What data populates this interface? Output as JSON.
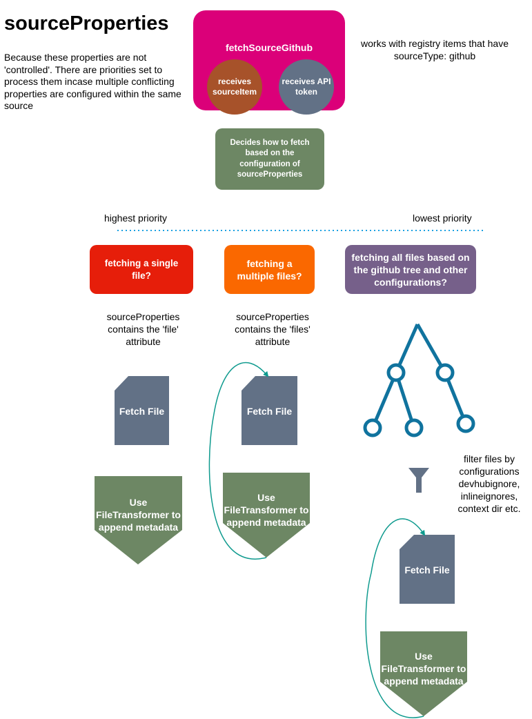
{
  "title": "sourceProperties",
  "intro": "Because these properties are not 'controlled'. There are priorities set to process them incase multiple conflicting properties are configured within the same source",
  "note_top": "works with registry items that have sourceType: github",
  "main_box": {
    "title": "fetchSourceGithub",
    "receives_item": "receives sourceItem",
    "receives_token": "receives API token"
  },
  "decides": "Decides how to fetch based on the configuration of sourceProperties",
  "priority": {
    "highest": "highest priority",
    "lowest": "lowest priority"
  },
  "questions": [
    "fetching a single file?",
    "fetching a multiple files?",
    "fetching all files based on the github tree and other configurations?"
  ],
  "descriptions": [
    "sourceProperties contains the 'file' attribute",
    "sourceProperties contains the 'files' attribute"
  ],
  "fetch_file_label": "Fetch File",
  "transformer_label": "Use FileTransformer to append metadata",
  "filter_text": "filter files by configurations devhubignore, inlineignores, context dir etc.",
  "colors": {
    "magenta": "#db0079",
    "brown": "#a7522a",
    "slate": "#627186",
    "green": "#6d8764",
    "red": "#e61e0a",
    "orange": "#fa6800",
    "purple": "#76608a",
    "tree": "#10739e",
    "arrow": "#0e9a8e",
    "dotted": "#1ba1e2"
  }
}
